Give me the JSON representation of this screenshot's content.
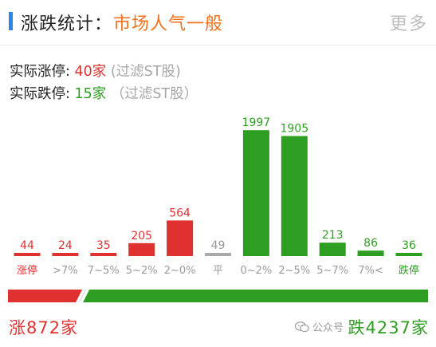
{
  "header": {
    "title": "涨跌统计：",
    "sentiment": "市场人气一般",
    "more_label": "更多"
  },
  "stats": {
    "limit_up_prefix": "实际涨停: ",
    "limit_up_value": "40家",
    "limit_up_note": " (过滤ST股)",
    "limit_down_prefix": "实际跌停: ",
    "limit_down_value": "15家",
    "limit_down_note": " （过滤ST股）"
  },
  "chart_data": {
    "type": "bar",
    "categories": [
      "涨停",
      ">7%",
      "7~5%",
      "5~2%",
      "2~0%",
      "平",
      "0~2%",
      "2~5%",
      "5~7%",
      "7%<",
      "跌停"
    ],
    "values": [
      44,
      24,
      35,
      205,
      564,
      49,
      1997,
      1905,
      213,
      86,
      36
    ],
    "bar_colors": [
      "#e03131",
      "#e03131",
      "#e03131",
      "#e03131",
      "#e03131",
      "#aaaaaa",
      "#2e9e22",
      "#2e9e22",
      "#2e9e22",
      "#2e9e22",
      "#2e9e22"
    ],
    "label_colors": [
      "#e03131",
      "#e03131",
      "#e03131",
      "#e03131",
      "#e03131",
      "#9a9a9a",
      "#2e9e22",
      "#2e9e22",
      "#2e9e22",
      "#2e9e22",
      "#2e9e22"
    ],
    "category_colors": [
      "#e03131",
      "#9a9a9a",
      "#9a9a9a",
      "#9a9a9a",
      "#9a9a9a",
      "#9a9a9a",
      "#9a9a9a",
      "#9a9a9a",
      "#9a9a9a",
      "#9a9a9a",
      "#2e9e22"
    ],
    "ylim": [
      0,
      2000
    ]
  },
  "ratio_bar": {
    "up_count": 872,
    "flat_count": 49,
    "down_count": 4237,
    "up_color": "#e03131",
    "flat_color": "#cccccc",
    "down_color": "#2e9e22"
  },
  "totals": {
    "up_label": "涨872家",
    "down_label": "跌4237家"
  },
  "watermark": {
    "text": "公众号"
  },
  "colors": {
    "accent": "#2b86e8",
    "sentiment": "#f0721f",
    "up": "#e03131",
    "down": "#2e9e22"
  }
}
